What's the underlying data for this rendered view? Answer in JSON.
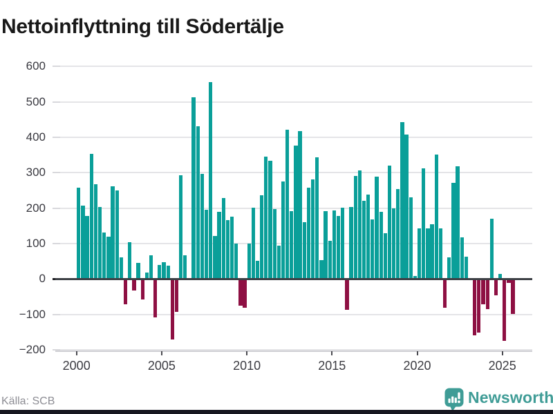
{
  "title": "Nettoinflyttning till Södertälje",
  "source": "Källa: SCB",
  "logo": {
    "text": "Newsworthy"
  },
  "chart_data": {
    "type": "bar",
    "title": "Nettoinflyttning till Södertälje",
    "xlabel": "",
    "ylabel": "",
    "ylim": [
      -200,
      600
    ],
    "grid": true,
    "colors": {
      "positive": "#0a9f99",
      "negative": "#8e1043"
    },
    "yticks": [
      600,
      500,
      400,
      300,
      200,
      100,
      0,
      -100,
      -200
    ],
    "xticks": [
      2000,
      2005,
      2010,
      2015,
      2020,
      2025
    ],
    "categories": [
      "2000-Q1",
      "2000-Q2",
      "2000-Q3",
      "2000-Q4",
      "2001-Q1",
      "2001-Q2",
      "2001-Q3",
      "2001-Q4",
      "2002-Q1",
      "2002-Q2",
      "2002-Q3",
      "2002-Q4",
      "2003-Q1",
      "2003-Q2",
      "2003-Q3",
      "2003-Q4",
      "2004-Q1",
      "2004-Q2",
      "2004-Q3",
      "2004-Q4",
      "2005-Q1",
      "2005-Q2",
      "2005-Q3",
      "2005-Q4",
      "2006-Q1",
      "2006-Q2",
      "2006-Q3",
      "2006-Q4",
      "2007-Q1",
      "2007-Q2",
      "2007-Q3",
      "2007-Q4",
      "2008-Q1",
      "2008-Q2",
      "2008-Q3",
      "2008-Q4",
      "2009-Q1",
      "2009-Q2",
      "2009-Q3",
      "2009-Q4",
      "2010-Q1",
      "2010-Q2",
      "2010-Q3",
      "2010-Q4",
      "2011-Q1",
      "2011-Q2",
      "2011-Q3",
      "2011-Q4",
      "2012-Q1",
      "2012-Q2",
      "2012-Q3",
      "2012-Q4",
      "2013-Q1",
      "2013-Q2",
      "2013-Q3",
      "2013-Q4",
      "2014-Q1",
      "2014-Q2",
      "2014-Q3",
      "2014-Q4",
      "2015-Q1",
      "2015-Q2",
      "2015-Q3",
      "2015-Q4",
      "2016-Q1",
      "2016-Q2",
      "2016-Q3",
      "2016-Q4",
      "2017-Q1",
      "2017-Q2",
      "2017-Q3",
      "2017-Q4",
      "2018-Q1",
      "2018-Q2",
      "2018-Q3",
      "2018-Q4",
      "2019-Q1",
      "2019-Q2",
      "2019-Q3",
      "2019-Q4",
      "2020-Q1",
      "2020-Q2",
      "2020-Q3",
      "2020-Q4",
      "2021-Q1",
      "2021-Q2",
      "2021-Q3",
      "2021-Q4",
      "2022-Q1",
      "2022-Q2",
      "2022-Q3",
      "2022-Q4",
      "2023-Q1",
      "2023-Q2",
      "2023-Q3",
      "2023-Q4",
      "2024-Q1",
      "2024-Q2",
      "2024-Q3",
      "2024-Q4",
      "2025-Q1",
      "2025-Q2",
      "2025-Q3"
    ],
    "values": [
      258,
      207,
      177,
      353,
      267,
      204,
      131,
      120,
      261,
      250,
      60,
      -70,
      104,
      -30,
      45,
      -55,
      18,
      66,
      -107,
      40,
      48,
      37,
      -168,
      -90,
      293,
      66,
      0,
      512,
      430,
      296,
      196,
      556,
      122,
      190,
      228,
      167,
      176,
      100,
      -74,
      -79,
      100,
      201,
      51,
      237,
      345,
      333,
      197,
      94,
      276,
      422,
      191,
      377,
      417,
      160,
      257,
      280,
      344,
      53,
      192,
      108,
      194,
      178,
      201,
      -86,
      204,
      290,
      306,
      220,
      239,
      168,
      288,
      190,
      130,
      320,
      200,
      254,
      443,
      408,
      230,
      8,
      142,
      312,
      142,
      154,
      351,
      142,
      -80,
      61,
      272,
      318,
      117,
      63,
      0,
      -158,
      -149,
      -70,
      -83,
      170,
      -44,
      14,
      -173,
      -10,
      -97
    ]
  }
}
